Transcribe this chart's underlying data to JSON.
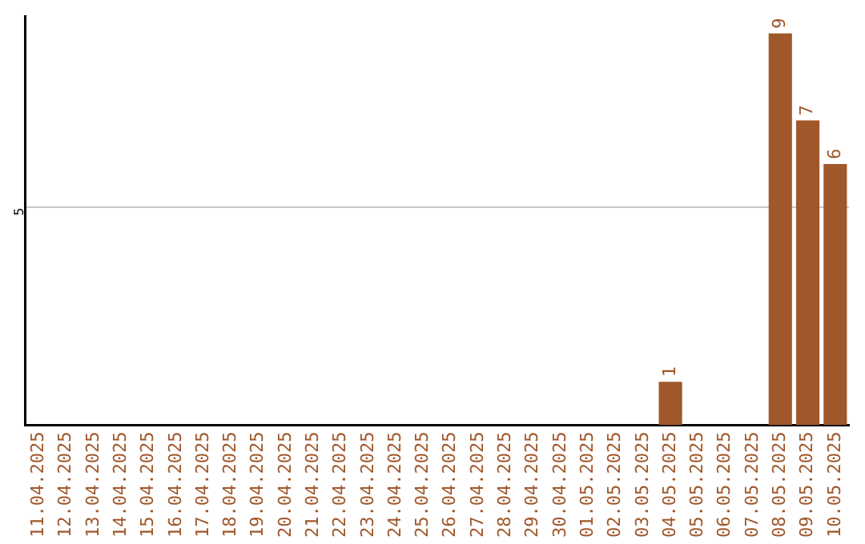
{
  "chart_data": {
    "type": "bar",
    "categories": [
      "11.04.2025",
      "12.04.2025",
      "13.04.2025",
      "14.04.2025",
      "15.04.2025",
      "16.04.2025",
      "17.04.2025",
      "18.04.2025",
      "19.04.2025",
      "20.04.2025",
      "21.04.2025",
      "22.04.2025",
      "23.04.2025",
      "24.04.2025",
      "25.04.2025",
      "26.04.2025",
      "27.04.2025",
      "28.04.2025",
      "29.04.2025",
      "30.04.2025",
      "01.05.2025",
      "02.05.2025",
      "03.05.2025",
      "04.05.2025",
      "05.05.2025",
      "06.05.2025",
      "07.05.2025",
      "08.05.2025",
      "09.05.2025",
      "10.05.2025"
    ],
    "values": [
      null,
      null,
      null,
      null,
      null,
      null,
      null,
      null,
      null,
      null,
      null,
      null,
      null,
      null,
      null,
      null,
      null,
      null,
      null,
      null,
      null,
      null,
      null,
      1,
      null,
      null,
      null,
      9,
      7,
      6
    ],
    "data_labels": true,
    "color": "#a0572a",
    "ylim": [
      0,
      9.4
    ],
    "yticks": [
      5
    ],
    "grid": "y",
    "legend": false
  }
}
